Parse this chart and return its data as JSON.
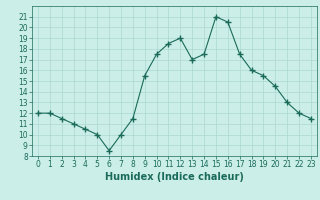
{
  "x": [
    0,
    1,
    2,
    3,
    4,
    5,
    6,
    7,
    8,
    9,
    10,
    11,
    12,
    13,
    14,
    15,
    16,
    17,
    18,
    19,
    20,
    21,
    22,
    23
  ],
  "y": [
    12,
    12,
    11.5,
    11,
    10.5,
    10,
    8.5,
    10,
    11.5,
    15.5,
    17.5,
    18.5,
    19,
    17,
    17.5,
    21,
    20.5,
    17.5,
    16,
    15.5,
    14.5,
    13,
    12,
    11.5
  ],
  "line_color": "#1a6b5a",
  "marker": "+",
  "marker_size": 4,
  "marker_linewidth": 1.0,
  "line_width": 0.8,
  "bg_color": "#cceee8",
  "grid_color": "#aad8d0",
  "xlabel": "Humidex (Indice chaleur)",
  "xlim": [
    -0.5,
    23.5
  ],
  "ylim": [
    8,
    22
  ],
  "yticks": [
    8,
    9,
    10,
    11,
    12,
    13,
    14,
    15,
    16,
    17,
    18,
    19,
    20,
    21
  ],
  "xticks": [
    0,
    1,
    2,
    3,
    4,
    5,
    6,
    7,
    8,
    9,
    10,
    11,
    12,
    13,
    14,
    15,
    16,
    17,
    18,
    19,
    20,
    21,
    22,
    23
  ],
  "tick_fontsize": 5.5,
  "xlabel_fontsize": 7
}
